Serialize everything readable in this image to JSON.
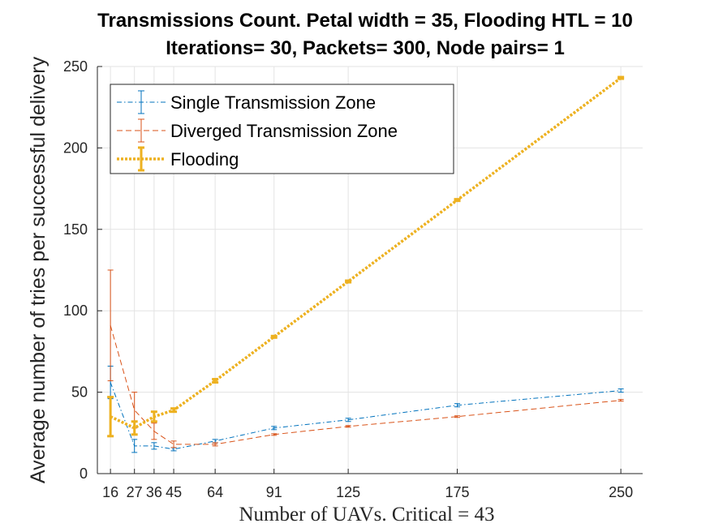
{
  "chart_data": {
    "type": "line",
    "title": [
      "Transmissions Count. Petal width = 35, Flooding HTL = 10",
      "Iterations= 30, Packets= 300, Node pairs= 1"
    ],
    "xlabel": "Number of UAVs. Critical = 43",
    "ylabel": "Average number of tries per successful delivery",
    "x": [
      16,
      27,
      36,
      45,
      64,
      91,
      125,
      175,
      250
    ],
    "xtick_labels": [
      "16",
      "27",
      "36",
      "45",
      "64",
      "91",
      "125",
      "175",
      "250"
    ],
    "xlim": [
      10,
      260
    ],
    "ylim": [
      0,
      250
    ],
    "yticks": [
      0,
      50,
      100,
      150,
      200,
      250
    ],
    "ytick_labels": [
      "0",
      "50",
      "100",
      "150",
      "200",
      "250"
    ],
    "grid": true,
    "legend_position": "top-left",
    "series": [
      {
        "name": "Single Transmission Zone",
        "color": "#0072BD",
        "style": "dash-dot",
        "values": [
          56,
          17,
          17,
          15,
          20,
          28,
          33,
          42,
          51
        ],
        "errors": [
          10,
          4,
          2,
          1,
          1,
          1,
          1,
          1,
          1
        ]
      },
      {
        "name": "Diverged Transmission Zone",
        "color": "#D95319",
        "style": "dashed",
        "values": [
          91,
          39,
          26,
          18,
          18,
          24,
          29,
          35,
          45
        ],
        "errors": [
          34,
          11,
          5,
          2,
          1,
          0.5,
          0.5,
          0.5,
          0.5
        ]
      },
      {
        "name": "Flooding",
        "color": "#EDB120",
        "style": "dotted",
        "values": [
          35,
          28,
          35,
          39,
          57,
          84,
          118,
          168,
          243
        ],
        "errors": [
          12,
          4,
          3,
          1,
          1,
          0.5,
          0.5,
          0.5,
          0.5
        ]
      }
    ]
  }
}
